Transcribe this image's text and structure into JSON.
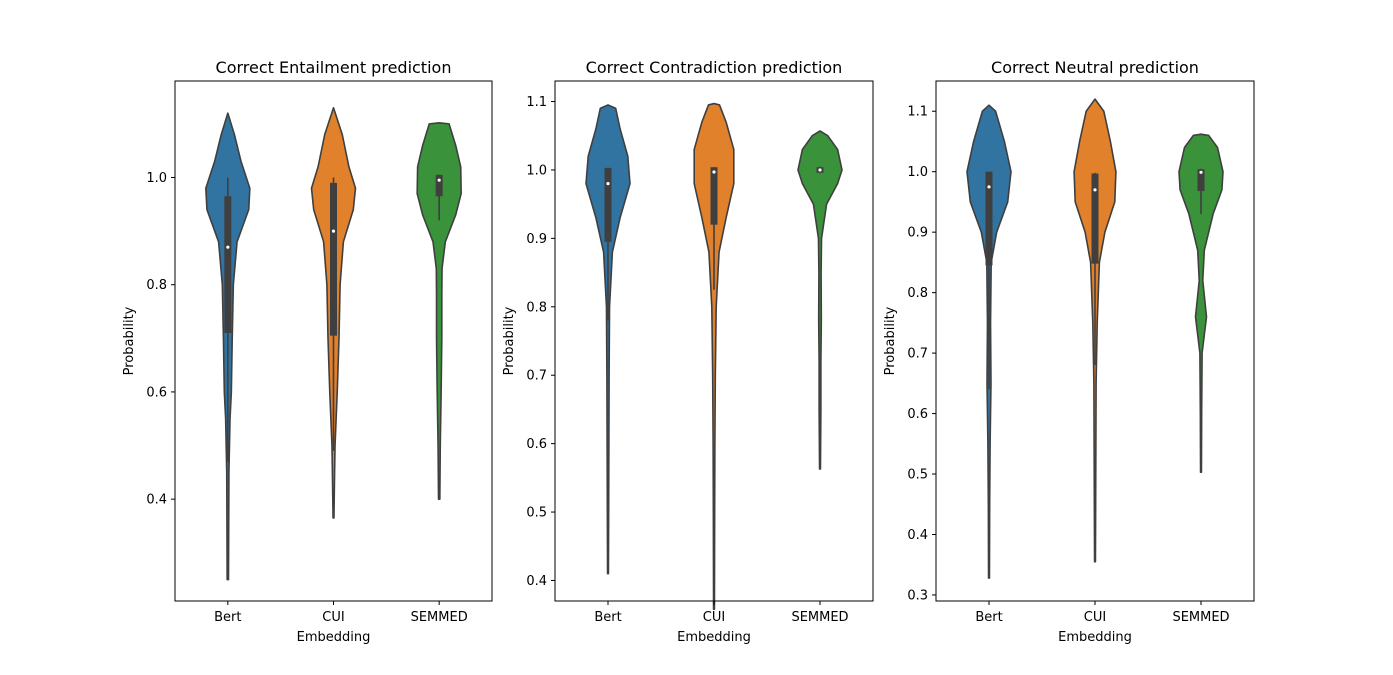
{
  "chart_data": [
    {
      "type": "violin",
      "title": "Correct Entailment prediction",
      "xlabel": "Embedding",
      "ylabel": "Probability",
      "categories": [
        "Bert",
        "CUI",
        "SEMMED"
      ],
      "ylim": [
        0.21,
        1.18
      ],
      "yticks": [
        0.4,
        0.6,
        0.8,
        1.0
      ],
      "ytick_labels": [
        "0.4",
        "0.6",
        "0.8",
        "1.0"
      ],
      "series": [
        {
          "color": "#3274a1",
          "median": 0.87,
          "q1": 0.71,
          "q3": 0.965,
          "whisker_low": 0.47,
          "whisker_high": 1.0,
          "density": [
            [
              0.25,
              0.03
            ],
            [
              0.35,
              0.04
            ],
            [
              0.45,
              0.05
            ],
            [
              0.55,
              0.1
            ],
            [
              0.6,
              0.16
            ],
            [
              0.7,
              0.2
            ],
            [
              0.8,
              0.25
            ],
            [
              0.88,
              0.42
            ],
            [
              0.94,
              0.95
            ],
            [
              0.98,
              1.0
            ],
            [
              1.03,
              0.6
            ],
            [
              1.08,
              0.3
            ],
            [
              1.12,
              0.0
            ]
          ]
        },
        {
          "color": "#e1812c",
          "median": 0.9,
          "q1": 0.705,
          "q3": 0.99,
          "whisker_low": 0.49,
          "whisker_high": 1.0,
          "density": [
            [
              0.365,
              0.02
            ],
            [
              0.45,
              0.05
            ],
            [
              0.5,
              0.07
            ],
            [
              0.6,
              0.17
            ],
            [
              0.7,
              0.25
            ],
            [
              0.8,
              0.3
            ],
            [
              0.88,
              0.45
            ],
            [
              0.94,
              0.9
            ],
            [
              0.98,
              1.0
            ],
            [
              1.02,
              0.7
            ],
            [
              1.08,
              0.4
            ],
            [
              1.13,
              0.0
            ]
          ]
        },
        {
          "color": "#3a923a",
          "median": 0.995,
          "q1": 0.965,
          "q3": 1.005,
          "whisker_low": 0.92,
          "whisker_high": 1.005,
          "density": [
            [
              0.4,
              0.03
            ],
            [
              0.5,
              0.05
            ],
            [
              0.6,
              0.09
            ],
            [
              0.7,
              0.12
            ],
            [
              0.78,
              0.12
            ],
            [
              0.83,
              0.13
            ],
            [
              0.88,
              0.28
            ],
            [
              0.93,
              0.75
            ],
            [
              0.97,
              1.0
            ],
            [
              1.02,
              0.98
            ],
            [
              1.06,
              0.75
            ],
            [
              1.1,
              0.45
            ],
            [
              1.102,
              0.0
            ]
          ]
        }
      ]
    },
    {
      "type": "violin",
      "title": "Correct Contradiction prediction",
      "xlabel": "Embedding",
      "ylabel": "Probability",
      "categories": [
        "Bert",
        "CUI",
        "SEMMED"
      ],
      "ylim": [
        0.37,
        1.13
      ],
      "yticks": [
        0.4,
        0.5,
        0.6,
        0.7,
        0.8,
        0.9,
        1.0,
        1.1
      ],
      "ytick_labels": [
        "0.4",
        "0.5",
        "0.6",
        "0.7",
        "0.8",
        "0.9",
        "1.0",
        "1.1"
      ],
      "series": [
        {
          "color": "#3274a1",
          "median": 0.98,
          "q1": 0.895,
          "q3": 1.003,
          "whisker_low": 0.78,
          "whisker_high": 1.003,
          "density": [
            [
              0.41,
              0.02
            ],
            [
              0.5,
              0.03
            ],
            [
              0.6,
              0.04
            ],
            [
              0.7,
              0.05
            ],
            [
              0.8,
              0.07
            ],
            [
              0.88,
              0.2
            ],
            [
              0.93,
              0.55
            ],
            [
              0.98,
              1.0
            ],
            [
              1.02,
              0.9
            ],
            [
              1.06,
              0.55
            ],
            [
              1.09,
              0.35
            ],
            [
              1.095,
              0.0
            ]
          ]
        },
        {
          "color": "#e1812c",
          "median": 0.997,
          "q1": 0.92,
          "q3": 1.004,
          "whisker_low": 0.825,
          "whisker_high": 1.004,
          "density": [
            [
              0.358,
              0.02
            ],
            [
              0.5,
              0.03
            ],
            [
              0.6,
              0.04
            ],
            [
              0.7,
              0.06
            ],
            [
              0.8,
              0.1
            ],
            [
              0.88,
              0.23
            ],
            [
              0.93,
              0.55
            ],
            [
              0.98,
              0.9
            ],
            [
              1.03,
              0.9
            ],
            [
              1.07,
              0.55
            ],
            [
              1.095,
              0.25
            ],
            [
              1.097,
              0.0
            ]
          ]
        },
        {
          "color": "#3a923a",
          "median": 1.0,
          "q1": 0.996,
          "q3": 1.004,
          "whisker_low": 0.995,
          "whisker_high": 1.005,
          "density": [
            [
              0.563,
              0.02
            ],
            [
              0.65,
              0.04
            ],
            [
              0.72,
              0.04
            ],
            [
              0.78,
              0.06
            ],
            [
              0.85,
              0.05
            ],
            [
              0.9,
              0.07
            ],
            [
              0.95,
              0.3
            ],
            [
              0.98,
              0.8
            ],
            [
              1.0,
              1.0
            ],
            [
              1.03,
              0.8
            ],
            [
              1.05,
              0.35
            ],
            [
              1.057,
              0.0
            ]
          ]
        }
      ]
    },
    {
      "type": "violin",
      "title": "Correct Neutral prediction",
      "xlabel": "Embedding",
      "ylabel": "Probability",
      "categories": [
        "Bert",
        "CUI",
        "SEMMED"
      ],
      "ylim": [
        0.29,
        1.15
      ],
      "yticks": [
        0.3,
        0.4,
        0.5,
        0.6,
        0.7,
        0.8,
        0.9,
        1.0,
        1.1
      ],
      "ytick_labels": [
        "0.3",
        "0.4",
        "0.5",
        "0.6",
        "0.7",
        "0.8",
        "0.9",
        "1.0",
        "1.1"
      ],
      "series": [
        {
          "color": "#3274a1",
          "median": 0.975,
          "q1": 0.845,
          "q3": 1.0,
          "whisker_low": 0.64,
          "whisker_high": 1.0,
          "density": [
            [
              0.328,
              0.02
            ],
            [
              0.45,
              0.03
            ],
            [
              0.55,
              0.05
            ],
            [
              0.65,
              0.09
            ],
            [
              0.75,
              0.07
            ],
            [
              0.85,
              0.1
            ],
            [
              0.9,
              0.35
            ],
            [
              0.95,
              0.85
            ],
            [
              1.0,
              1.0
            ],
            [
              1.05,
              0.7
            ],
            [
              1.1,
              0.3
            ],
            [
              1.11,
              0.0
            ]
          ]
        },
        {
          "color": "#e1812c",
          "median": 0.97,
          "q1": 0.848,
          "q3": 0.997,
          "whisker_low": 0.68,
          "whisker_high": 0.998,
          "density": [
            [
              0.355,
              0.02
            ],
            [
              0.45,
              0.03
            ],
            [
              0.55,
              0.04
            ],
            [
              0.65,
              0.05
            ],
            [
              0.75,
              0.1
            ],
            [
              0.85,
              0.2
            ],
            [
              0.9,
              0.45
            ],
            [
              0.95,
              0.9
            ],
            [
              1.0,
              0.95
            ],
            [
              1.05,
              0.7
            ],
            [
              1.1,
              0.4
            ],
            [
              1.12,
              0.0
            ]
          ]
        },
        {
          "color": "#3a923a",
          "median": 0.999,
          "q1": 0.968,
          "q3": 1.004,
          "whisker_low": 0.93,
          "whisker_high": 1.005,
          "density": [
            [
              0.503,
              0.02
            ],
            [
              0.6,
              0.03
            ],
            [
              0.7,
              0.05
            ],
            [
              0.76,
              0.25
            ],
            [
              0.82,
              0.08
            ],
            [
              0.87,
              0.15
            ],
            [
              0.93,
              0.55
            ],
            [
              0.97,
              0.95
            ],
            [
              1.0,
              1.0
            ],
            [
              1.04,
              0.75
            ],
            [
              1.06,
              0.35
            ],
            [
              1.062,
              0.0
            ]
          ]
        }
      ]
    }
  ]
}
